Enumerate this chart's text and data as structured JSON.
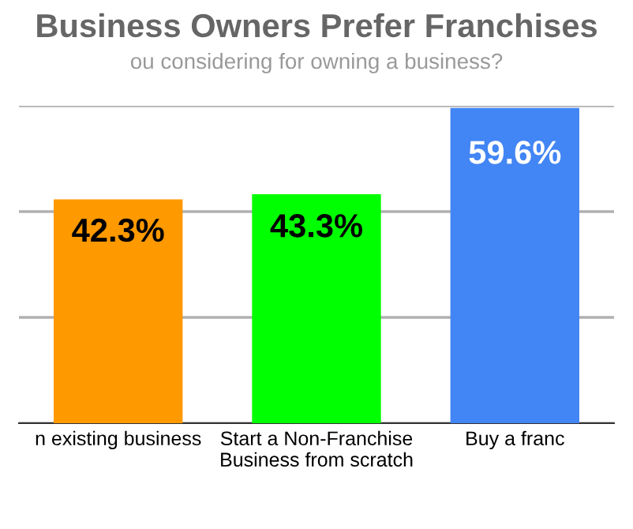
{
  "chart_data": {
    "type": "bar",
    "title": "Business Owners Prefer Franchises",
    "subtitle": "ou considering for owning a business?",
    "categories": [
      "n existing business",
      "Start a Non-Franchise\nBusiness from scratch",
      "Buy a franc"
    ],
    "values": [
      42.3,
      43.3,
      59.6
    ],
    "colors": [
      "#ff9900",
      "#00ff00",
      "#4285f4"
    ],
    "value_labels": [
      "42.3%",
      "43.3%",
      "59.6%"
    ],
    "ylim": [
      0,
      60
    ],
    "yticks": [
      {
        "value": 0,
        "label": null
      },
      {
        "value": 20,
        "label": null
      },
      {
        "value": 40,
        "label": null
      },
      {
        "value": 60,
        "label": null
      }
    ],
    "grid": "y"
  }
}
